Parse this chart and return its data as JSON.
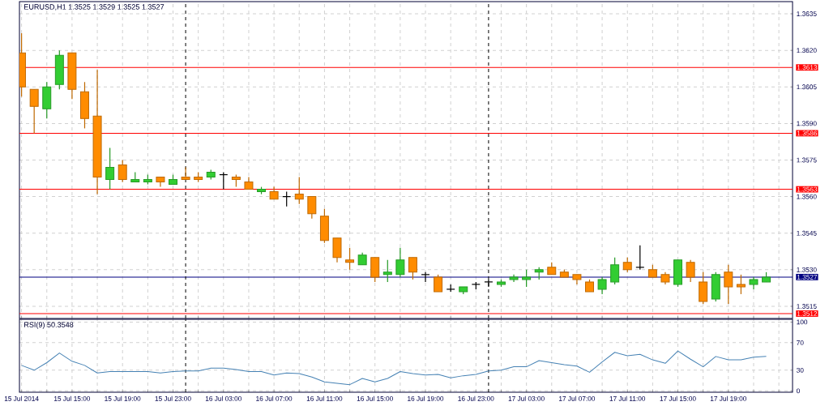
{
  "chart_data": [
    {
      "type": "candlestick",
      "title": "EURUSD,H1  1.3525 1.3529 1.3525 1.3527",
      "x": [
        "2014-07-15T11:00",
        "2014-07-15T12:00",
        "2014-07-15T13:00",
        "2014-07-15T14:00",
        "2014-07-15T15:00",
        "2014-07-15T16:00",
        "2014-07-15T17:00",
        "2014-07-15T18:00",
        "2014-07-15T19:00",
        "2014-07-15T20:00",
        "2014-07-15T21:00",
        "2014-07-15T22:00",
        "2014-07-15T23:00",
        "2014-07-16T00:00",
        "2014-07-16T01:00",
        "2014-07-16T02:00",
        "2014-07-16T03:00",
        "2014-07-16T04:00",
        "2014-07-16T05:00",
        "2014-07-16T06:00",
        "2014-07-16T07:00",
        "2014-07-16T08:00",
        "2014-07-16T09:00",
        "2014-07-16T10:00",
        "2014-07-16T11:00",
        "2014-07-16T12:00",
        "2014-07-16T13:00",
        "2014-07-16T14:00",
        "2014-07-16T15:00",
        "2014-07-16T16:00",
        "2014-07-16T17:00",
        "2014-07-16T18:00",
        "2014-07-16T19:00",
        "2014-07-16T20:00",
        "2014-07-16T21:00",
        "2014-07-16T22:00",
        "2014-07-16T23:00",
        "2014-07-17T00:00",
        "2014-07-17T01:00",
        "2014-07-17T02:00",
        "2014-07-17T03:00",
        "2014-07-17T04:00",
        "2014-07-17T05:00",
        "2014-07-17T06:00",
        "2014-07-17T07:00",
        "2014-07-17T08:00",
        "2014-07-17T09:00",
        "2014-07-17T10:00",
        "2014-07-17T11:00",
        "2014-07-17T12:00",
        "2014-07-17T13:00",
        "2014-07-17T14:00",
        "2014-07-17T15:00",
        "2014-07-17T16:00",
        "2014-07-17T17:00",
        "2014-07-17T18:00",
        "2014-07-17T19:00",
        "2014-07-17T20:00",
        "2014-07-17T21:00",
        "2014-07-17T22:00"
      ],
      "ohlc": [
        [
          1.3619,
          1.3627,
          1.3601,
          1.3605
        ],
        [
          1.3604,
          1.3604,
          1.3586,
          1.3597
        ],
        [
          1.3596,
          1.3607,
          1.3592,
          1.3605
        ],
        [
          1.3606,
          1.362,
          1.3604,
          1.3618
        ],
        [
          1.3619,
          1.3619,
          1.36,
          1.3604
        ],
        [
          1.3603,
          1.3607,
          1.3588,
          1.3592
        ],
        [
          1.3593,
          1.3612,
          1.3561,
          1.3568
        ],
        [
          1.3567,
          1.358,
          1.3563,
          1.3572
        ],
        [
          1.3573,
          1.3575,
          1.3566,
          1.3567
        ],
        [
          1.3566,
          1.357,
          1.3566,
          1.3567
        ],
        [
          1.3566,
          1.3569,
          1.3565,
          1.3567
        ],
        [
          1.3568,
          1.3568,
          1.3564,
          1.3566
        ],
        [
          1.3565,
          1.3569,
          1.3565,
          1.3567
        ],
        [
          1.3568,
          1.3572,
          1.3567,
          1.3567
        ],
        [
          1.3568,
          1.357,
          1.3566,
          1.3567
        ],
        [
          1.3568,
          1.3571,
          1.3567,
          1.357
        ],
        [
          1.3569,
          1.357,
          1.3563,
          1.3569
        ],
        [
          1.3568,
          1.3569,
          1.3564,
          1.3567
        ],
        [
          1.3566,
          1.3568,
          1.3563,
          1.3563
        ],
        [
          1.3562,
          1.3564,
          1.3561,
          1.3563
        ],
        [
          1.3562,
          1.3564,
          1.3559,
          1.3559
        ],
        [
          1.356,
          1.3562,
          1.3556,
          1.356
        ],
        [
          1.3561,
          1.3568,
          1.3557,
          1.3559
        ],
        [
          1.356,
          1.356,
          1.3551,
          1.3553
        ],
        [
          1.3552,
          1.3555,
          1.3541,
          1.3542
        ],
        [
          1.3543,
          1.3543,
          1.3533,
          1.3535
        ],
        [
          1.3534,
          1.3539,
          1.353,
          1.3533
        ],
        [
          1.3532,
          1.3537,
          1.3532,
          1.3536
        ],
        [
          1.3535,
          1.3535,
          1.3525,
          1.3527
        ],
        [
          1.3528,
          1.3534,
          1.3525,
          1.3529
        ],
        [
          1.3528,
          1.3539,
          1.3527,
          1.3534
        ],
        [
          1.3535,
          1.3535,
          1.3526,
          1.3529
        ],
        [
          1.3528,
          1.3529,
          1.3525,
          1.3528
        ],
        [
          1.3527,
          1.3528,
          1.3521,
          1.3521
        ],
        [
          1.3522,
          1.3524,
          1.3521,
          1.3522
        ],
        [
          1.3521,
          1.3523,
          1.352,
          1.3523
        ],
        [
          1.3524,
          1.3525,
          1.3522,
          1.3524
        ],
        [
          1.3525,
          1.3526,
          1.3523,
          1.3525
        ],
        [
          1.3524,
          1.3526,
          1.3523,
          1.3525
        ],
        [
          1.3526,
          1.3528,
          1.3525,
          1.3527
        ],
        [
          1.3526,
          1.353,
          1.3523,
          1.3527
        ],
        [
          1.3529,
          1.3531,
          1.3526,
          1.353
        ],
        [
          1.3531,
          1.3533,
          1.3528,
          1.3528
        ],
        [
          1.3529,
          1.353,
          1.3527,
          1.3527
        ],
        [
          1.3528,
          1.3528,
          1.3524,
          1.3526
        ],
        [
          1.3525,
          1.3526,
          1.3521,
          1.3521
        ],
        [
          1.3522,
          1.3527,
          1.352,
          1.3526
        ],
        [
          1.3525,
          1.3535,
          1.3524,
          1.3532
        ],
        [
          1.3533,
          1.3535,
          1.3529,
          1.353
        ],
        [
          1.3531,
          1.354,
          1.353,
          1.3531
        ],
        [
          1.353,
          1.3532,
          1.3527,
          1.3527
        ],
        [
          1.3528,
          1.3529,
          1.3524,
          1.3525
        ],
        [
          1.3524,
          1.3534,
          1.3523,
          1.3534
        ],
        [
          1.3533,
          1.3534,
          1.3525,
          1.3527
        ],
        [
          1.3525,
          1.3529,
          1.3516,
          1.3517
        ],
        [
          1.3518,
          1.3529,
          1.3517,
          1.3528
        ],
        [
          1.3529,
          1.3532,
          1.3516,
          1.3523
        ],
        [
          1.3524,
          1.3528,
          1.352,
          1.3523
        ],
        [
          1.3524,
          1.3527,
          1.3522,
          1.3526
        ],
        [
          1.3525,
          1.3529,
          1.3525,
          1.3527
        ]
      ],
      "colors": [
        "#ff8c00",
        "#ff8c00",
        "#32cd32",
        "#32cd32",
        "#ff8c00",
        "#ff8c00",
        "#ff8c00",
        "#32cd32",
        "#ff8c00",
        "#32cd32",
        "#32cd32",
        "#ff8c00",
        "#32cd32",
        "#ff8c00",
        "#ff8c00",
        "#32cd32",
        "#000000",
        "#ff8c00",
        "#ff8c00",
        "#32cd32",
        "#ff8c00",
        "#000000",
        "#ff8c00",
        "#ff8c00",
        "#ff8c00",
        "#ff8c00",
        "#ff8c00",
        "#32cd32",
        "#ff8c00",
        "#32cd32",
        "#32cd32",
        "#ff8c00",
        "#000000",
        "#ff8c00",
        "#000000",
        "#32cd32",
        "#000000",
        "#000000",
        "#32cd32",
        "#32cd32",
        "#32cd32",
        "#32cd32",
        "#ff8c00",
        "#ff8c00",
        "#ff8c00",
        "#ff8c00",
        "#32cd32",
        "#32cd32",
        "#ff8c00",
        "#000000",
        "#ff8c00",
        "#ff8c00",
        "#32cd32",
        "#ff8c00",
        "#ff8c00",
        "#32cd32",
        "#ff8c00",
        "#ff8c00",
        "#32cd32",
        "#32cd32"
      ],
      "xlim": [
        "2014-07-15T10:50",
        "2014-07-18T00:05"
      ],
      "xticks": [
        {
          "value": "2014-07-15T11:00",
          "label": null
        },
        {
          "value": "2014-07-15T13:00",
          "label": null
        },
        {
          "value": "2014-07-15T15:00",
          "label": null
        },
        {
          "value": "2014-07-15T17:00",
          "label": null
        },
        {
          "value": "2014-07-15T19:00",
          "label": null
        },
        {
          "value": "2014-07-15T21:00",
          "label": null
        },
        {
          "value": "2014-07-15T23:00",
          "label": null
        },
        {
          "value": "2014-07-16T01:00",
          "label": null
        },
        {
          "value": "2014-07-16T03:00",
          "label": null
        },
        {
          "value": "2014-07-16T05:00",
          "label": null
        },
        {
          "value": "2014-07-16T07:00",
          "label": null
        },
        {
          "value": "2014-07-16T09:00",
          "label": null
        },
        {
          "value": "2014-07-16T11:00",
          "label": null
        },
        {
          "value": "2014-07-16T13:00",
          "label": null
        },
        {
          "value": "2014-07-16T15:00",
          "label": null
        },
        {
          "value": "2014-07-16T17:00",
          "label": null
        },
        {
          "value": "2014-07-16T19:00",
          "label": null
        },
        {
          "value": "2014-07-16T21:00",
          "label": null
        },
        {
          "value": "2014-07-16T23:00",
          "label": null
        },
        {
          "value": "2014-07-17T01:00",
          "label": null
        },
        {
          "value": "2014-07-17T03:00",
          "label": null
        },
        {
          "value": "2014-07-17T05:00",
          "label": null
        },
        {
          "value": "2014-07-17T07:00",
          "label": null
        },
        {
          "value": "2014-07-17T09:00",
          "label": null
        },
        {
          "value": "2014-07-17T11:00",
          "label": null
        },
        {
          "value": "2014-07-17T13:00",
          "label": null
        },
        {
          "value": "2014-07-17T15:00",
          "label": null
        },
        {
          "value": "2014-07-17T17:00",
          "label": null
        },
        {
          "value": "2014-07-17T19:00",
          "label": null
        },
        {
          "value": "2014-07-17T21:00",
          "label": null
        },
        {
          "value": "2014-07-17T23:00",
          "label": null
        }
      ],
      "ylim": [
        1.351,
        1.364
      ],
      "yticks": [
        1.3515,
        {
          "value": 1.353,
          "label": "1.3530"
        },
        1.3545,
        {
          "value": 1.356,
          "label": "1.3560"
        },
        1.3575,
        {
          "value": 1.359,
          "label": "1.3590"
        },
        1.3605,
        {
          "value": 1.362,
          "label": "1.3620"
        },
        1.3635
      ],
      "ref_lines": [
        {
          "axis": "y",
          "value": 1.3613,
          "label": "1.3613",
          "color": "#ff0000",
          "line_style": "solid"
        },
        {
          "axis": "y",
          "value": 1.3586,
          "label": "1.3586",
          "color": "#ff0000",
          "line_style": "solid"
        },
        {
          "axis": "y",
          "value": 1.3563,
          "label": "1.3563",
          "color": "#ff0000",
          "line_style": "solid"
        },
        {
          "axis": "y",
          "value": 1.3512,
          "label": "1.3512",
          "color": "#ff0000",
          "line_style": "solid"
        },
        {
          "axis": "y",
          "value": 1.3527,
          "label": "1.3527",
          "color": "#000080",
          "line_style": "solid"
        },
        {
          "axis": "x",
          "value": "2014-07-16T00:00",
          "color": "#000000",
          "line_style": "dashed"
        },
        {
          "axis": "x",
          "value": "2014-07-17T00:00",
          "color": "#000000",
          "line_style": "dashed"
        }
      ],
      "grid": true,
      "tick_labels": "y"
    },
    {
      "type": "line",
      "title": "RSI(9) 50.3548",
      "color": "#4682b4",
      "x": [
        "2014-07-15T11:00",
        "2014-07-15T12:00",
        "2014-07-15T13:00",
        "2014-07-15T14:00",
        "2014-07-15T15:00",
        "2014-07-15T16:00",
        "2014-07-15T17:00",
        "2014-07-15T18:00",
        "2014-07-15T19:00",
        "2014-07-15T20:00",
        "2014-07-15T21:00",
        "2014-07-15T22:00",
        "2014-07-15T23:00",
        "2014-07-16T00:00",
        "2014-07-16T01:00",
        "2014-07-16T02:00",
        "2014-07-16T03:00",
        "2014-07-16T04:00",
        "2014-07-16T05:00",
        "2014-07-16T06:00",
        "2014-07-16T07:00",
        "2014-07-16T08:00",
        "2014-07-16T09:00",
        "2014-07-16T10:00",
        "2014-07-16T11:00",
        "2014-07-16T12:00",
        "2014-07-16T13:00",
        "2014-07-16T14:00",
        "2014-07-16T15:00",
        "2014-07-16T16:00",
        "2014-07-16T17:00",
        "2014-07-16T18:00",
        "2014-07-16T19:00",
        "2014-07-16T20:00",
        "2014-07-16T21:00",
        "2014-07-16T22:00",
        "2014-07-16T23:00",
        "2014-07-17T00:00",
        "2014-07-17T01:00",
        "2014-07-17T02:00",
        "2014-07-17T03:00",
        "2014-07-17T04:00",
        "2014-07-17T05:00",
        "2014-07-17T06:00",
        "2014-07-17T07:00",
        "2014-07-17T08:00",
        "2014-07-17T09:00",
        "2014-07-17T10:00",
        "2014-07-17T11:00",
        "2014-07-17T12:00",
        "2014-07-17T13:00",
        "2014-07-17T14:00",
        "2014-07-17T15:00",
        "2014-07-17T16:00",
        "2014-07-17T17:00",
        "2014-07-17T18:00",
        "2014-07-17T19:00",
        "2014-07-17T20:00",
        "2014-07-17T21:00",
        "2014-07-17T22:00"
      ],
      "values": [
        37,
        30,
        41,
        55,
        43,
        37,
        26,
        28,
        28,
        28,
        28,
        26,
        28,
        29,
        29,
        33,
        33,
        31,
        28,
        28,
        23,
        26,
        25,
        20,
        13,
        11,
        9,
        18,
        13,
        18,
        28,
        25,
        23,
        24,
        19,
        22,
        24,
        29,
        30,
        35,
        35,
        44,
        41,
        38,
        36,
        27,
        42,
        56,
        51,
        53,
        45,
        40,
        58,
        46,
        35,
        50,
        45,
        45,
        49,
        50
      ],
      "xlim": [
        "2014-07-15T10:50",
        "2014-07-18T00:05"
      ],
      "xticks": [
        {
          "value": "2014-07-15T11:00",
          "label": "15 Jul 2014"
        },
        {
          "value": "2014-07-15T13:00",
          "label": null
        },
        {
          "value": "2014-07-15T15:00",
          "label": "15 Jul 15:00"
        },
        {
          "value": "2014-07-15T17:00",
          "label": null
        },
        {
          "value": "2014-07-15T19:00",
          "label": "15 Jul 19:00"
        },
        {
          "value": "2014-07-15T21:00",
          "label": null
        },
        {
          "value": "2014-07-15T23:00",
          "label": "15 Jul 23:00"
        },
        {
          "value": "2014-07-16T01:00",
          "label": null
        },
        {
          "value": "2014-07-16T03:00",
          "label": "16 Jul 03:00"
        },
        {
          "value": "2014-07-16T05:00",
          "label": null
        },
        {
          "value": "2014-07-16T07:00",
          "label": "16 Jul 07:00"
        },
        {
          "value": "2014-07-16T09:00",
          "label": null
        },
        {
          "value": "2014-07-16T11:00",
          "label": "16 Jul 11:00"
        },
        {
          "value": "2014-07-16T13:00",
          "label": null
        },
        {
          "value": "2014-07-16T15:00",
          "label": "16 Jul 15:00"
        },
        {
          "value": "2014-07-16T17:00",
          "label": null
        },
        {
          "value": "2014-07-16T19:00",
          "label": "16 Jul 19:00"
        },
        {
          "value": "2014-07-16T21:00",
          "label": null
        },
        {
          "value": "2014-07-16T23:00",
          "label": "16 Jul 23:00"
        },
        {
          "value": "2014-07-17T01:00",
          "label": null
        },
        {
          "value": "2014-07-17T03:00",
          "label": "17 Jul 03:00"
        },
        {
          "value": "2014-07-17T05:00",
          "label": null
        },
        {
          "value": "2014-07-17T07:00",
          "label": "17 Jul 07:00"
        },
        {
          "value": "2014-07-17T09:00",
          "label": null
        },
        {
          "value": "2014-07-17T11:00",
          "label": "17 Jul 11:00"
        },
        {
          "value": "2014-07-17T13:00",
          "label": null
        },
        {
          "value": "2014-07-17T15:00",
          "label": "17 Jul 15:00"
        },
        {
          "value": "2014-07-17T17:00",
          "label": null
        },
        {
          "value": "2014-07-17T19:00",
          "label": "17 Jul 19:00"
        },
        {
          "value": "2014-07-17T21:00",
          "label": null
        },
        {
          "value": "2014-07-17T23:00",
          "label": null
        }
      ],
      "ylim": [
        -2,
        104
      ],
      "yticks": [
        0,
        30,
        70,
        100
      ],
      "ref_lines": [
        {
          "axis": "x",
          "value": "2014-07-16T00:00",
          "color": "#000000",
          "line_style": "dashed"
        },
        {
          "axis": "x",
          "value": "2014-07-17T00:00",
          "color": "#000000",
          "line_style": "dashed"
        }
      ],
      "grid": true
    }
  ]
}
